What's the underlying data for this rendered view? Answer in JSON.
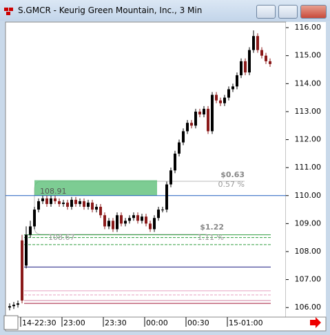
{
  "window": {
    "title": "S.GMCR - Keurig Green Mountain, Inc., 3 Min"
  },
  "chart_data": {
    "type": "candlestick",
    "categories": [
      null,
      null,
      null,
      "14-22:30",
      null,
      null,
      null,
      null,
      null,
      null,
      null,
      null,
      null,
      "23:00",
      null,
      null,
      null,
      null,
      null,
      null,
      null,
      null,
      null,
      "23:30",
      null,
      null,
      null,
      null,
      null,
      null,
      null,
      null,
      null,
      "00:00",
      null,
      null,
      null,
      null,
      null,
      null,
      null,
      null,
      null,
      "00:30",
      null,
      null,
      null,
      null,
      null,
      null,
      null,
      null,
      null,
      "15-01:00",
      null,
      null,
      null,
      null,
      null,
      null,
      null,
      null,
      null,
      null
    ],
    "open": [
      106.0,
      106.05,
      106.1,
      108.4,
      107.5,
      108.6,
      108.9,
      109.5,
      109.8,
      109.9,
      109.7,
      109.9,
      109.8,
      109.7,
      109.75,
      109.6,
      109.85,
      109.7,
      109.8,
      109.6,
      109.75,
      109.5,
      109.6,
      109.3,
      108.9,
      109.1,
      108.8,
      109.3,
      109.0,
      109.1,
      109.2,
      109.3,
      109.1,
      109.25,
      109.0,
      108.8,
      109.2,
      109.5,
      109.5,
      110.4,
      110.9,
      111.5,
      111.9,
      112.3,
      112.6,
      112.5,
      113.0,
      112.9,
      113.1,
      112.3,
      113.6,
      113.4,
      113.3,
      113.5,
      113.8,
      113.9,
      114.3,
      114.8,
      114.4,
      115.2,
      115.7,
      115.2,
      115.0,
      114.8
    ],
    "high": [
      106.15,
      106.2,
      106.25,
      108.6,
      108.9,
      109.1,
      109.6,
      109.9,
      110.0,
      110.0,
      110.0,
      110.0,
      109.9,
      109.85,
      109.85,
      109.95,
      109.95,
      109.9,
      109.9,
      109.85,
      109.85,
      109.7,
      109.7,
      109.4,
      109.2,
      109.2,
      109.4,
      109.4,
      109.2,
      109.3,
      109.4,
      109.4,
      109.35,
      109.35,
      109.1,
      109.3,
      109.6,
      109.6,
      110.5,
      111.0,
      111.6,
      112.0,
      112.4,
      112.7,
      112.7,
      113.1,
      113.1,
      113.2,
      113.2,
      113.7,
      113.7,
      113.5,
      113.6,
      113.9,
      114.0,
      114.4,
      114.9,
      114.9,
      115.3,
      115.9,
      115.8,
      115.3,
      115.1,
      114.9
    ],
    "low": [
      105.9,
      105.95,
      106.0,
      106.15,
      107.4,
      108.5,
      108.8,
      109.4,
      109.7,
      109.6,
      109.6,
      109.7,
      109.6,
      109.6,
      109.5,
      109.5,
      109.6,
      109.6,
      109.5,
      109.5,
      109.4,
      109.4,
      109.2,
      108.8,
      108.8,
      108.7,
      108.7,
      108.9,
      108.9,
      109.0,
      109.1,
      109.0,
      109.0,
      108.9,
      108.7,
      108.7,
      109.1,
      109.4,
      109.4,
      110.3,
      110.8,
      111.4,
      111.8,
      112.2,
      112.4,
      112.4,
      112.8,
      112.8,
      112.2,
      112.2,
      113.3,
      113.2,
      113.2,
      113.4,
      113.7,
      113.8,
      114.2,
      114.3,
      114.3,
      115.1,
      115.1,
      114.9,
      114.7,
      114.6
    ],
    "close": [
      106.05,
      106.1,
      106.15,
      106.25,
      108.6,
      108.9,
      109.5,
      109.8,
      109.9,
      109.7,
      109.9,
      109.8,
      109.7,
      109.75,
      109.6,
      109.85,
      109.7,
      109.8,
      109.6,
      109.75,
      109.5,
      109.6,
      109.3,
      108.9,
      109.1,
      108.8,
      109.3,
      109.0,
      109.1,
      109.2,
      109.3,
      109.1,
      109.25,
      109.0,
      108.8,
      109.2,
      109.5,
      109.5,
      110.4,
      110.9,
      111.5,
      111.9,
      112.3,
      112.6,
      112.5,
      113.0,
      112.9,
      113.1,
      112.3,
      113.6,
      113.4,
      113.3,
      113.5,
      113.8,
      113.9,
      114.3,
      114.8,
      114.4,
      115.2,
      115.7,
      115.2,
      115.0,
      114.8,
      114.7
    ],
    "up_color": "#000000",
    "down_color": "#8b1a1a",
    "ylim": [
      105.66,
      116.2
    ],
    "yticks": [
      {
        "value": 106,
        "label": "106.00"
      },
      {
        "value": 107,
        "label": "107.00"
      },
      {
        "value": 108,
        "label": "108.00"
      },
      {
        "value": 109,
        "label": "109.00"
      },
      {
        "value": 110,
        "label": "110.00"
      },
      {
        "value": 111,
        "label": "111.00"
      },
      {
        "value": 112,
        "label": "112.00"
      },
      {
        "value": 113,
        "label": "113.00"
      },
      {
        "value": 114,
        "label": "114.00"
      },
      {
        "value": 115,
        "label": "115.00"
      },
      {
        "value": 116,
        "label": "116.00"
      }
    ],
    "levels": [
      {
        "value": 110.0,
        "color": "#1f5fbf",
        "dash": false
      },
      {
        "value": 107.45,
        "color": "#1a1a80",
        "dash": false
      },
      {
        "value": 108.6,
        "color": "#2e9e3e",
        "dash": false
      },
      {
        "value": 108.5,
        "color": "#2e9e3e",
        "dash": true
      },
      {
        "value": 108.25,
        "color": "#2e9e3e",
        "dash": true
      },
      {
        "value": 106.6,
        "color": "#e8a0c0",
        "dash": false
      },
      {
        "value": 106.45,
        "color": "#e8a0c0",
        "dash": true
      },
      {
        "value": 106.25,
        "color": "#d080a0",
        "dash": false
      },
      {
        "value": 106.15,
        "color": "#a01030",
        "dash": false
      }
    ],
    "highlight": {
      "y": [
        110.0,
        110.55
      ],
      "color": "#5cbf78"
    },
    "annotations": [
      "108.91",
      "$0.63",
      "0.57 %",
      "$1.22",
      "1.11 %",
      "108.67"
    ]
  }
}
